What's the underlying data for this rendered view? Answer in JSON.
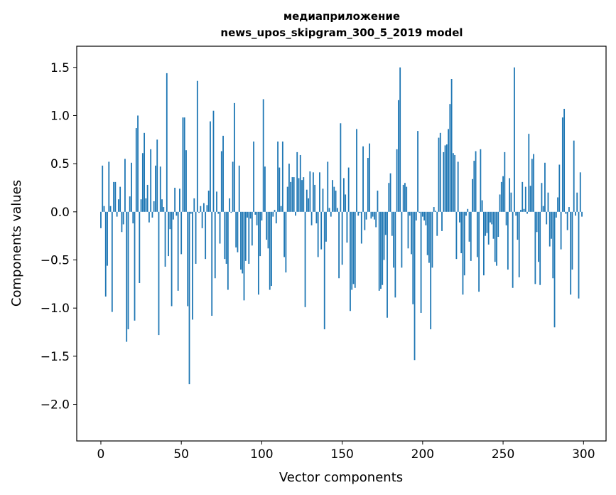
{
  "chart_data": {
    "type": "bar",
    "title_line1": "медиаприложение",
    "title_line2": "news_upos_skipgram_300_5_2019 model",
    "xlabel": "Vector components",
    "ylabel": "Components values",
    "xlim": [
      -15,
      314
    ],
    "ylim": [
      -2.38,
      1.72
    ],
    "xticks": [
      0,
      50,
      100,
      150,
      200,
      250,
      300
    ],
    "yticks": [
      -2.0,
      -1.5,
      -1.0,
      -0.5,
      0.0,
      0.5,
      1.0,
      1.5
    ],
    "ytick_labels": [
      "−2.0",
      "−1.5",
      "−1.0",
      "−0.5",
      "0.0",
      "0.5",
      "1.0",
      "1.5"
    ],
    "bar_color": "#1f77b4",
    "values": [
      -0.17,
      0.48,
      0.06,
      -0.88,
      -0.56,
      0.52,
      0.06,
      -1.04,
      0.31,
      0.31,
      -0.05,
      0.13,
      0.26,
      -0.21,
      -0.13,
      0.55,
      -1.35,
      -1.22,
      0.16,
      0.51,
      -0.12,
      -1.13,
      0.87,
      1.0,
      -0.74,
      0.13,
      0.61,
      0.82,
      0.14,
      0.28,
      -0.11,
      0.65,
      -0.06,
      0.11,
      0.48,
      0.75,
      -1.28,
      0.47,
      0.13,
      0.05,
      -0.57,
      1.44,
      -0.46,
      -0.18,
      -0.98,
      -0.08,
      0.25,
      -0.04,
      -0.82,
      0.24,
      -0.44,
      0.98,
      0.98,
      0.64,
      -0.98,
      -1.79,
      -0.02,
      -1.12,
      0.14,
      -0.54,
      1.36,
      -0.01,
      0.06,
      -0.17,
      0.09,
      -0.49,
      0.07,
      0.22,
      0.94,
      -1.08,
      1.05,
      -0.69,
      0.21,
      -0.02,
      -0.33,
      0.63,
      0.79,
      -0.49,
      -0.54,
      -0.81,
      0.14,
      -0.01,
      0.52,
      1.13,
      -0.37,
      -0.42,
      0.48,
      -0.6,
      -0.64,
      -0.92,
      -0.51,
      -0.06,
      -0.54,
      -0.07,
      -0.35,
      0.73,
      -0.03,
      -0.14,
      -0.86,
      -0.46,
      -0.09,
      1.17,
      0.47,
      -0.29,
      -0.38,
      -0.81,
      -0.77,
      -0.05,
      0.02,
      -0.12,
      0.73,
      0.46,
      0.06,
      0.73,
      -0.47,
      -0.63,
      0.26,
      0.5,
      0.31,
      0.36,
      0.36,
      -0.04,
      0.62,
      0.35,
      0.59,
      0.33,
      0.36,
      -0.99,
      0.23,
      0.14,
      0.42,
      -0.14,
      0.41,
      0.28,
      -0.12,
      -0.47,
      0.41,
      -0.39,
      0.24,
      -1.22,
      -0.31,
      0.52,
      0.04,
      -0.05,
      0.33,
      0.26,
      0.22,
      0.04,
      -0.69,
      0.92,
      -0.55,
      0.35,
      0.18,
      -0.32,
      0.46,
      -1.03,
      -0.81,
      -0.75,
      -0.79,
      0.86,
      -0.04,
      -0.01,
      -0.33,
      0.68,
      -0.19,
      -0.08,
      0.56,
      0.71,
      -0.07,
      -0.05,
      -0.08,
      -0.16,
      0.22,
      -0.82,
      -0.8,
      -0.76,
      -0.5,
      -0.24,
      -1.1,
      0.3,
      0.4,
      -0.25,
      -0.58,
      -0.89,
      0.65,
      1.16,
      1.5,
      -0.58,
      0.28,
      0.3,
      0.26,
      -0.38,
      -0.04,
      -0.44,
      -0.96,
      -1.54,
      -0.09,
      0.84,
      -0.01,
      -1.05,
      -0.05,
      -0.09,
      -0.14,
      -0.45,
      -0.53,
      -1.22,
      -0.58,
      0.05,
      0.01,
      -0.25,
      0.77,
      0.82,
      -0.2,
      0.62,
      0.69,
      0.7,
      0.86,
      1.12,
      1.38,
      0.61,
      0.59,
      -0.49,
      0.52,
      -0.11,
      -0.43,
      -0.86,
      -0.66,
      -0.04,
      0.03,
      -0.31,
      -0.51,
      0.34,
      0.53,
      0.63,
      -0.47,
      -0.83,
      0.65,
      0.12,
      -0.66,
      -0.25,
      -0.22,
      -0.34,
      -0.11,
      -0.13,
      -0.28,
      -0.52,
      -0.56,
      -0.26,
      0.18,
      0.31,
      0.37,
      0.62,
      -0.14,
      -0.6,
      0.35,
      0.2,
      -0.79,
      1.5,
      -0.04,
      -0.29,
      -0.68,
      0.02,
      0.31,
      0.03,
      0.26,
      -0.02,
      0.81,
      0.27,
      0.55,
      0.6,
      -0.75,
      -0.21,
      -0.52,
      -0.76,
      0.3,
      0.06,
      0.51,
      -0.13,
      0.2,
      -0.36,
      -0.28,
      -0.69,
      -1.2,
      -0.06,
      0.15,
      0.49,
      -0.39,
      0.98,
      1.07,
      -0.02,
      -0.19,
      0.05,
      -0.86,
      -0.6,
      0.74,
      -0.04,
      0.2,
      -0.9,
      0.41,
      -0.05
    ]
  }
}
